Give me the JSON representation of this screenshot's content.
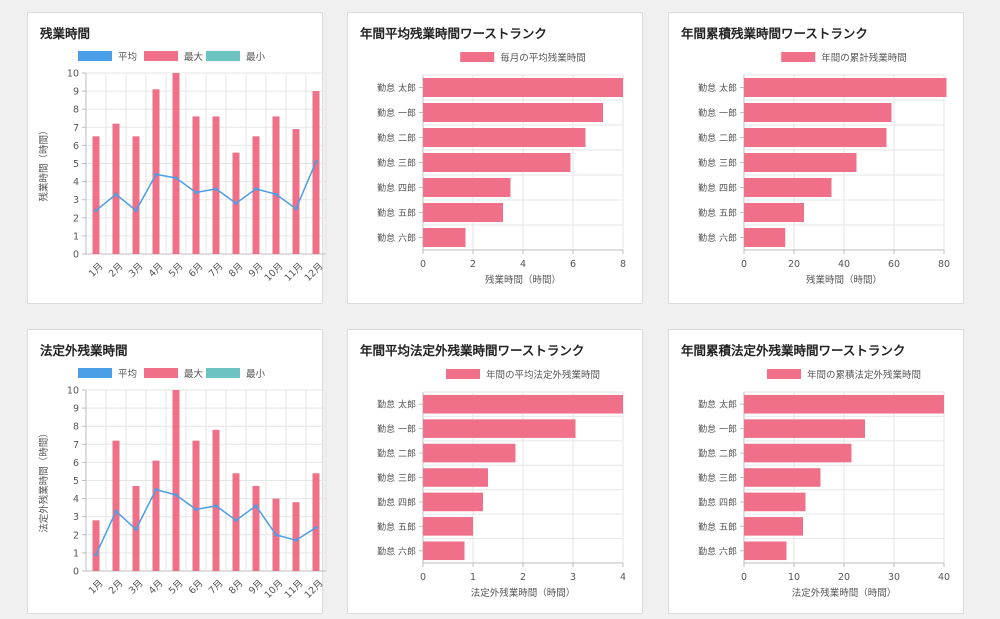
{
  "colors": {
    "avg": "#4a9fe6",
    "max": "#ef7088",
    "min": "#6cc3c1",
    "grid": "#e6e6e6",
    "axis": "#bdbdbd",
    "text": "#555555"
  },
  "chart_data": [
    {
      "id": "overtime",
      "type": "bar",
      "title": "残業時間",
      "ylabel": "残業時間（時間）",
      "ylim": [
        0,
        10
      ],
      "yticks": [
        0,
        1,
        2,
        3,
        4,
        5,
        6,
        7,
        8,
        9,
        10
      ],
      "categories": [
        "1月",
        "2月",
        "3月",
        "4月",
        "5月",
        "6月",
        "7月",
        "8月",
        "9月",
        "10月",
        "11月",
        "12月"
      ],
      "legend": [
        "平均",
        "最大",
        "最小"
      ],
      "series": [
        {
          "name": "平均",
          "kind": "line",
          "values": [
            2.4,
            3.3,
            2.4,
            4.4,
            4.2,
            3.4,
            3.6,
            2.8,
            3.6,
            3.3,
            2.5,
            5.1
          ]
        },
        {
          "name": "最大",
          "kind": "bar",
          "values": [
            6.5,
            7.2,
            6.5,
            9.1,
            10.0,
            7.6,
            7.6,
            5.6,
            6.5,
            7.6,
            6.9,
            9.0
          ]
        },
        {
          "name": "最小",
          "kind": "bar",
          "values": [
            0,
            0,
            0,
            0,
            0,
            0,
            0,
            0,
            0,
            0,
            0,
            0
          ]
        }
      ]
    },
    {
      "id": "avg-rank",
      "type": "bar",
      "orientation": "horizontal",
      "title": "年間平均残業時間ワーストランク",
      "xlabel": "残業時間（時間）",
      "xlim": [
        0,
        8
      ],
      "xticks": [
        0,
        2,
        4,
        6,
        8
      ],
      "legend": [
        "毎月の平均残業時間"
      ],
      "categories": [
        "勤怠 太郎",
        "勤怠 一郎",
        "勤怠 二郎",
        "勤怠 三郎",
        "勤怠 四郎",
        "勤怠 五郎",
        "勤怠 六郎"
      ],
      "values": [
        8.0,
        7.2,
        6.5,
        5.9,
        3.5,
        3.2,
        1.7
      ]
    },
    {
      "id": "total-rank",
      "type": "bar",
      "orientation": "horizontal",
      "title": "年間累積残業時間ワーストランク",
      "xlabel": "残業時間（時間）",
      "xlim": [
        0,
        80
      ],
      "xticks": [
        0,
        20,
        40,
        60,
        80
      ],
      "legend": [
        "年間の累計残業時間"
      ],
      "categories": [
        "勤怠 太郎",
        "勤怠 一郎",
        "勤怠 二郎",
        "勤怠 三郎",
        "勤怠 四郎",
        "勤怠 五郎",
        "勤怠 六郎"
      ],
      "values": [
        81,
        59,
        57,
        45,
        35,
        24,
        16.5
      ]
    },
    {
      "id": "legal-overtime",
      "type": "bar",
      "title": "法定外残業時間",
      "ylabel": "法定外残業時間（時間）",
      "ylim": [
        0,
        10
      ],
      "yticks": [
        0,
        1,
        2,
        3,
        4,
        5,
        6,
        7,
        8,
        9,
        10
      ],
      "categories": [
        "1月",
        "2月",
        "3月",
        "4月",
        "5月",
        "6月",
        "7月",
        "8月",
        "9月",
        "10月",
        "11月",
        "12月"
      ],
      "legend": [
        "平均",
        "最大",
        "最小"
      ],
      "series": [
        {
          "name": "平均",
          "kind": "line",
          "values": [
            0.9,
            3.3,
            2.3,
            4.5,
            4.2,
            3.4,
            3.6,
            2.8,
            3.6,
            2.0,
            1.7,
            2.4
          ]
        },
        {
          "name": "最大",
          "kind": "bar",
          "values": [
            2.8,
            7.2,
            4.7,
            6.1,
            10.0,
            7.2,
            7.8,
            5.4,
            4.7,
            4.0,
            3.8,
            5.4
          ]
        },
        {
          "name": "最小",
          "kind": "bar",
          "values": [
            0,
            0,
            0,
            0,
            0,
            0,
            0,
            0,
            0,
            0,
            0,
            0
          ]
        }
      ]
    },
    {
      "id": "legal-avg-rank",
      "type": "bar",
      "orientation": "horizontal",
      "title": "年間平均法定外残業時間ワーストランク",
      "xlabel": "法定外残業時間（時間）",
      "xlim": [
        0,
        4
      ],
      "xticks": [
        0,
        1,
        2,
        3,
        4
      ],
      "legend": [
        "年間の平均法定外残業時間"
      ],
      "categories": [
        "勤怠 太郎",
        "勤怠 一郎",
        "勤怠 二郎",
        "勤怠 三郎",
        "勤怠 四郎",
        "勤怠 五郎",
        "勤怠 六郎"
      ],
      "values": [
        4.0,
        3.05,
        1.85,
        1.3,
        1.2,
        1.0,
        0.83
      ]
    },
    {
      "id": "legal-total-rank",
      "type": "bar",
      "orientation": "horizontal",
      "title": "年間累積法定外残業時間ワーストランク",
      "xlabel": "法定外残業時間（時間）",
      "xlim": [
        0,
        40
      ],
      "xticks": [
        0,
        10,
        20,
        30,
        40
      ],
      "legend": [
        "年間の累積法定外残業時間"
      ],
      "categories": [
        "勤怠 太郎",
        "勤怠 一郎",
        "勤怠 二郎",
        "勤怠 三郎",
        "勤怠 四郎",
        "勤怠 五郎",
        "勤怠 六郎"
      ],
      "values": [
        40,
        24.2,
        21.5,
        15.3,
        12.3,
        11.8,
        8.5
      ]
    }
  ]
}
